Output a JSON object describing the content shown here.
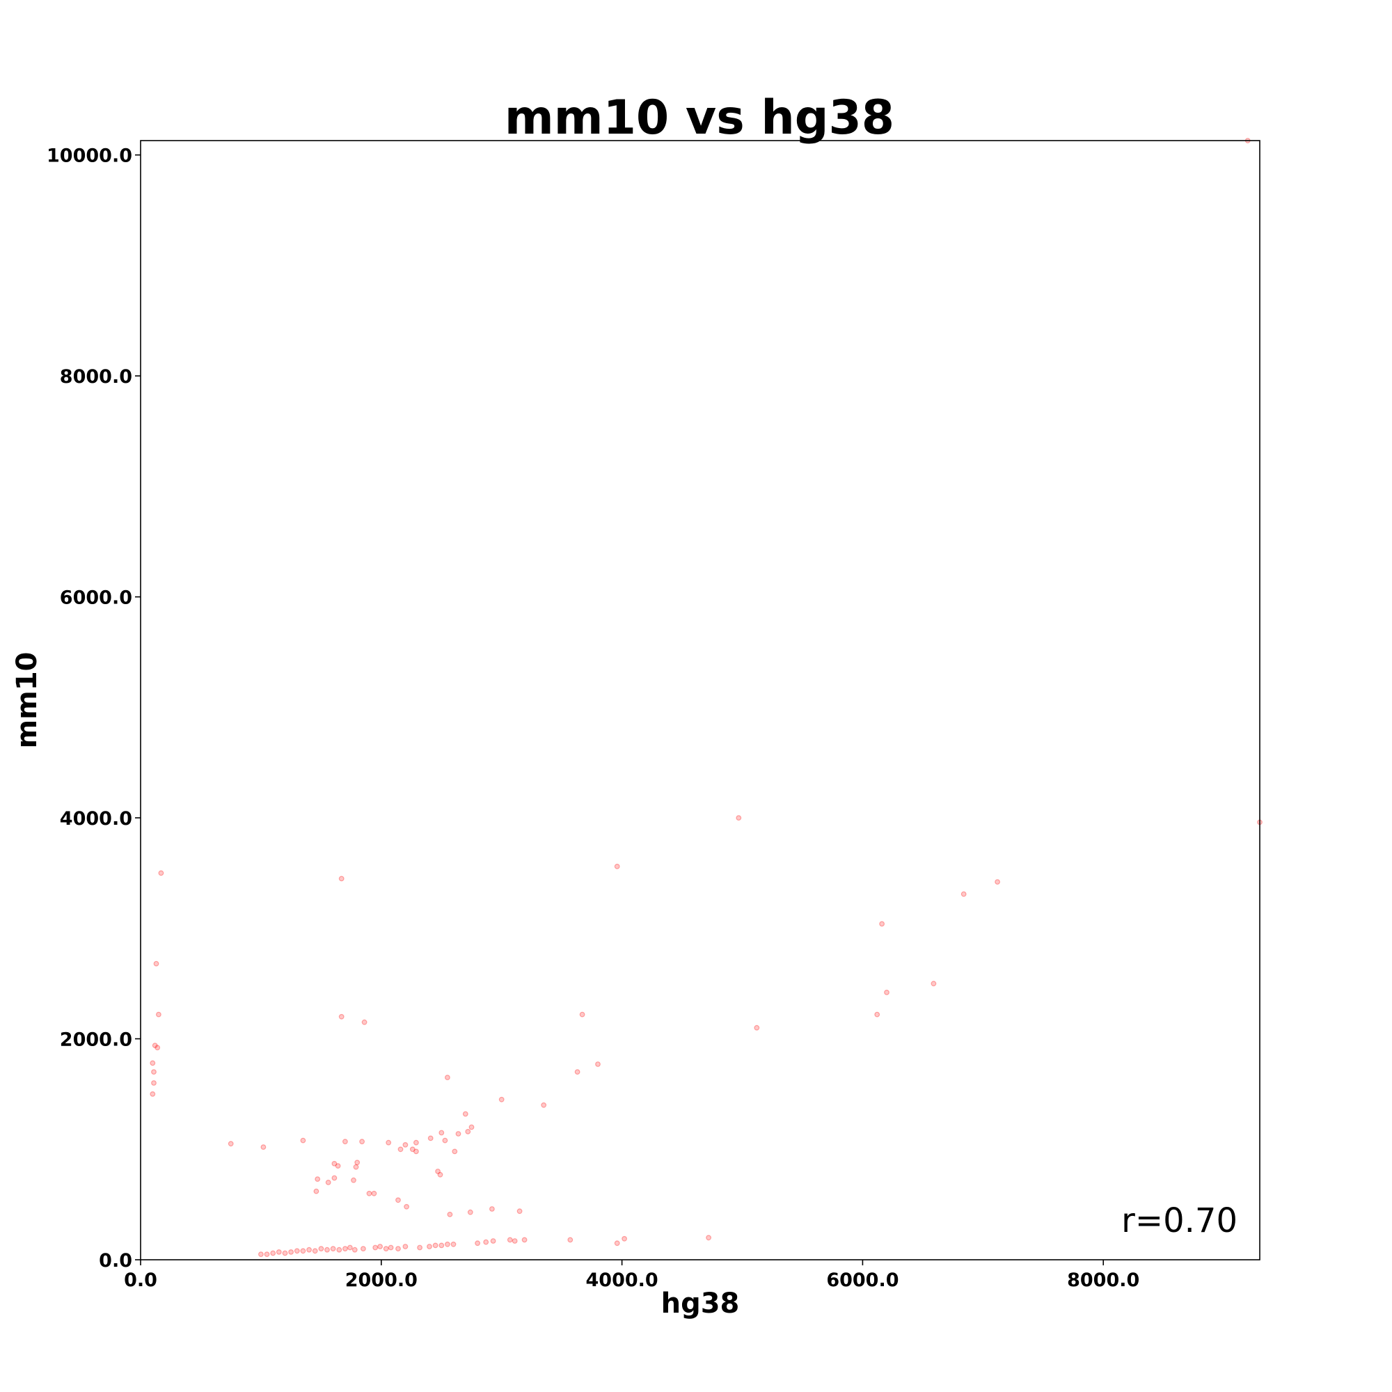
{
  "chart_data": {
    "type": "scatter",
    "title": "mm10 vs hg38",
    "xlabel": "hg38",
    "ylabel": "mm10",
    "xlim": [
      0,
      9300
    ],
    "ylim": [
      0,
      10130
    ],
    "xticks": [
      0,
      2000,
      4000,
      6000,
      8000
    ],
    "xtick_labels": [
      "0.0",
      "2000.0",
      "4000.0",
      "6000.0",
      "8000.0"
    ],
    "yticks": [
      0,
      2000,
      4000,
      6000,
      8000,
      10000
    ],
    "ytick_labels": [
      "0.0",
      "2000.0",
      "4000.0",
      "6000.0",
      "8000.0",
      "10000.0"
    ],
    "annotation": "r=0.70",
    "grid": false,
    "marker_color": "#ff0000",
    "marker_alpha": 0.22,
    "series": [
      {
        "values": [
          [
            9200,
            10130
          ],
          [
            9300,
            3960
          ],
          [
            4970,
            4000
          ],
          [
            3960,
            3560
          ],
          [
            7120,
            3420
          ],
          [
            6840,
            3310
          ],
          [
            1670,
            3450
          ],
          [
            170,
            3500
          ],
          [
            6160,
            3040
          ],
          [
            6590,
            2500
          ],
          [
            6200,
            2420
          ],
          [
            6120,
            2220
          ],
          [
            5120,
            2100
          ],
          [
            3670,
            2220
          ],
          [
            1670,
            2200
          ],
          [
            1860,
            2150
          ],
          [
            130,
            2680
          ],
          [
            150,
            2220
          ],
          [
            120,
            1940
          ],
          [
            140,
            1920
          ],
          [
            100,
            1780
          ],
          [
            110,
            1700
          ],
          [
            110,
            1600
          ],
          [
            100,
            1500
          ],
          [
            3630,
            1700
          ],
          [
            3800,
            1770
          ],
          [
            2550,
            1650
          ],
          [
            3000,
            1450
          ],
          [
            3350,
            1400
          ],
          [
            2700,
            1320
          ],
          [
            2750,
            1200
          ],
          [
            2720,
            1160
          ],
          [
            2640,
            1140
          ],
          [
            2500,
            1150
          ],
          [
            2530,
            1080
          ],
          [
            2410,
            1100
          ],
          [
            2290,
            1060
          ],
          [
            2200,
            1040
          ],
          [
            2160,
            1000
          ],
          [
            2260,
            1000
          ],
          [
            2290,
            980
          ],
          [
            2060,
            1060
          ],
          [
            1700,
            1070
          ],
          [
            1840,
            1070
          ],
          [
            1350,
            1080
          ],
          [
            750,
            1050
          ],
          [
            1020,
            1020
          ],
          [
            2610,
            980
          ],
          [
            2470,
            800
          ],
          [
            2490,
            770
          ],
          [
            2140,
            540
          ],
          [
            2210,
            480
          ],
          [
            2920,
            460
          ],
          [
            3150,
            440
          ],
          [
            2570,
            410
          ],
          [
            2740,
            430
          ],
          [
            1900,
            600
          ],
          [
            1940,
            600
          ],
          [
            1800,
            880
          ],
          [
            1790,
            840
          ],
          [
            1610,
            870
          ],
          [
            1640,
            850
          ],
          [
            1470,
            730
          ],
          [
            1560,
            700
          ],
          [
            1610,
            740
          ],
          [
            1770,
            720
          ],
          [
            1460,
            620
          ],
          [
            4720,
            200
          ],
          [
            4020,
            190
          ],
          [
            3960,
            150
          ],
          [
            3570,
            180
          ],
          [
            3190,
            180
          ],
          [
            3110,
            170
          ],
          [
            3070,
            180
          ],
          [
            2930,
            170
          ],
          [
            2870,
            160
          ],
          [
            2800,
            150
          ],
          [
            2600,
            140
          ],
          [
            2550,
            140
          ],
          [
            2500,
            130
          ],
          [
            2450,
            130
          ],
          [
            2400,
            120
          ],
          [
            2320,
            110
          ],
          [
            2200,
            120
          ],
          [
            2140,
            100
          ],
          [
            2080,
            110
          ],
          [
            2040,
            100
          ],
          [
            1990,
            120
          ],
          [
            1950,
            110
          ],
          [
            1850,
            100
          ],
          [
            1780,
            90
          ],
          [
            1740,
            110
          ],
          [
            1700,
            100
          ],
          [
            1650,
            90
          ],
          [
            1600,
            100
          ],
          [
            1550,
            90
          ],
          [
            1500,
            100
          ],
          [
            1450,
            80
          ],
          [
            1400,
            90
          ],
          [
            1350,
            80
          ],
          [
            1300,
            80
          ],
          [
            1250,
            70
          ],
          [
            1200,
            60
          ],
          [
            1150,
            70
          ],
          [
            1100,
            60
          ],
          [
            1050,
            50
          ],
          [
            1000,
            50
          ]
        ]
      }
    ]
  }
}
